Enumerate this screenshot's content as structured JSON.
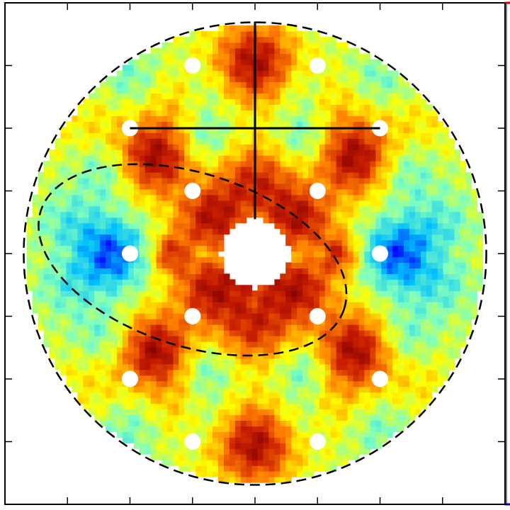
{
  "chart_data": {
    "type": "heatmap",
    "title": "",
    "xlabel": "",
    "ylabel": "",
    "xlim": [
      -4,
      4
    ],
    "ylim": [
      -4,
      4
    ],
    "grid": false,
    "colormap": "jet",
    "colormap_stops": [
      "#00008f",
      "#0000ff",
      "#00bfff",
      "#7fffbf",
      "#ffff00",
      "#ff7f00",
      "#c81e00",
      "#800000"
    ],
    "x_tick_values": [
      -3,
      -2,
      -1,
      0,
      1,
      2,
      3
    ],
    "y_tick_values": [
      -3,
      -2,
      -1,
      0,
      1,
      2,
      3
    ],
    "disk_radius": 3.65,
    "center_hole_radius": 0.55,
    "masked_holes": [
      [
        -1.0,
        3.0
      ],
      [
        1.0,
        3.0
      ],
      [
        -1.0,
        -3.0
      ],
      [
        1.0,
        -3.0
      ],
      [
        -1.0,
        1.0
      ],
      [
        1.0,
        1.0
      ],
      [
        -1.0,
        -1.0
      ],
      [
        1.0,
        -1.0
      ],
      [
        -2.0,
        0.0
      ],
      [
        2.0,
        0.0
      ],
      [
        -2.0,
        2.0
      ],
      [
        2.0,
        2.0
      ],
      [
        -2.0,
        -2.0
      ],
      [
        2.0,
        -2.0
      ]
    ],
    "overlay_lines": [
      {
        "style": "solid",
        "from": [
          -2.0,
          2.0
        ],
        "to": [
          2.0,
          2.0
        ]
      },
      {
        "style": "solid",
        "from": [
          0.0,
          3.7
        ],
        "to": [
          0.0,
          0.55
        ]
      }
    ],
    "overlay_circles": [
      {
        "style": "dashed",
        "center": [
          0.0,
          0.0
        ],
        "radius": 3.7
      }
    ],
    "overlay_ellipses": [
      {
        "style": "dashed",
        "center": [
          -1.0,
          -0.1
        ],
        "rx": 2.55,
        "ry": 1.38,
        "rotation_deg": -18
      }
    ]
  }
}
